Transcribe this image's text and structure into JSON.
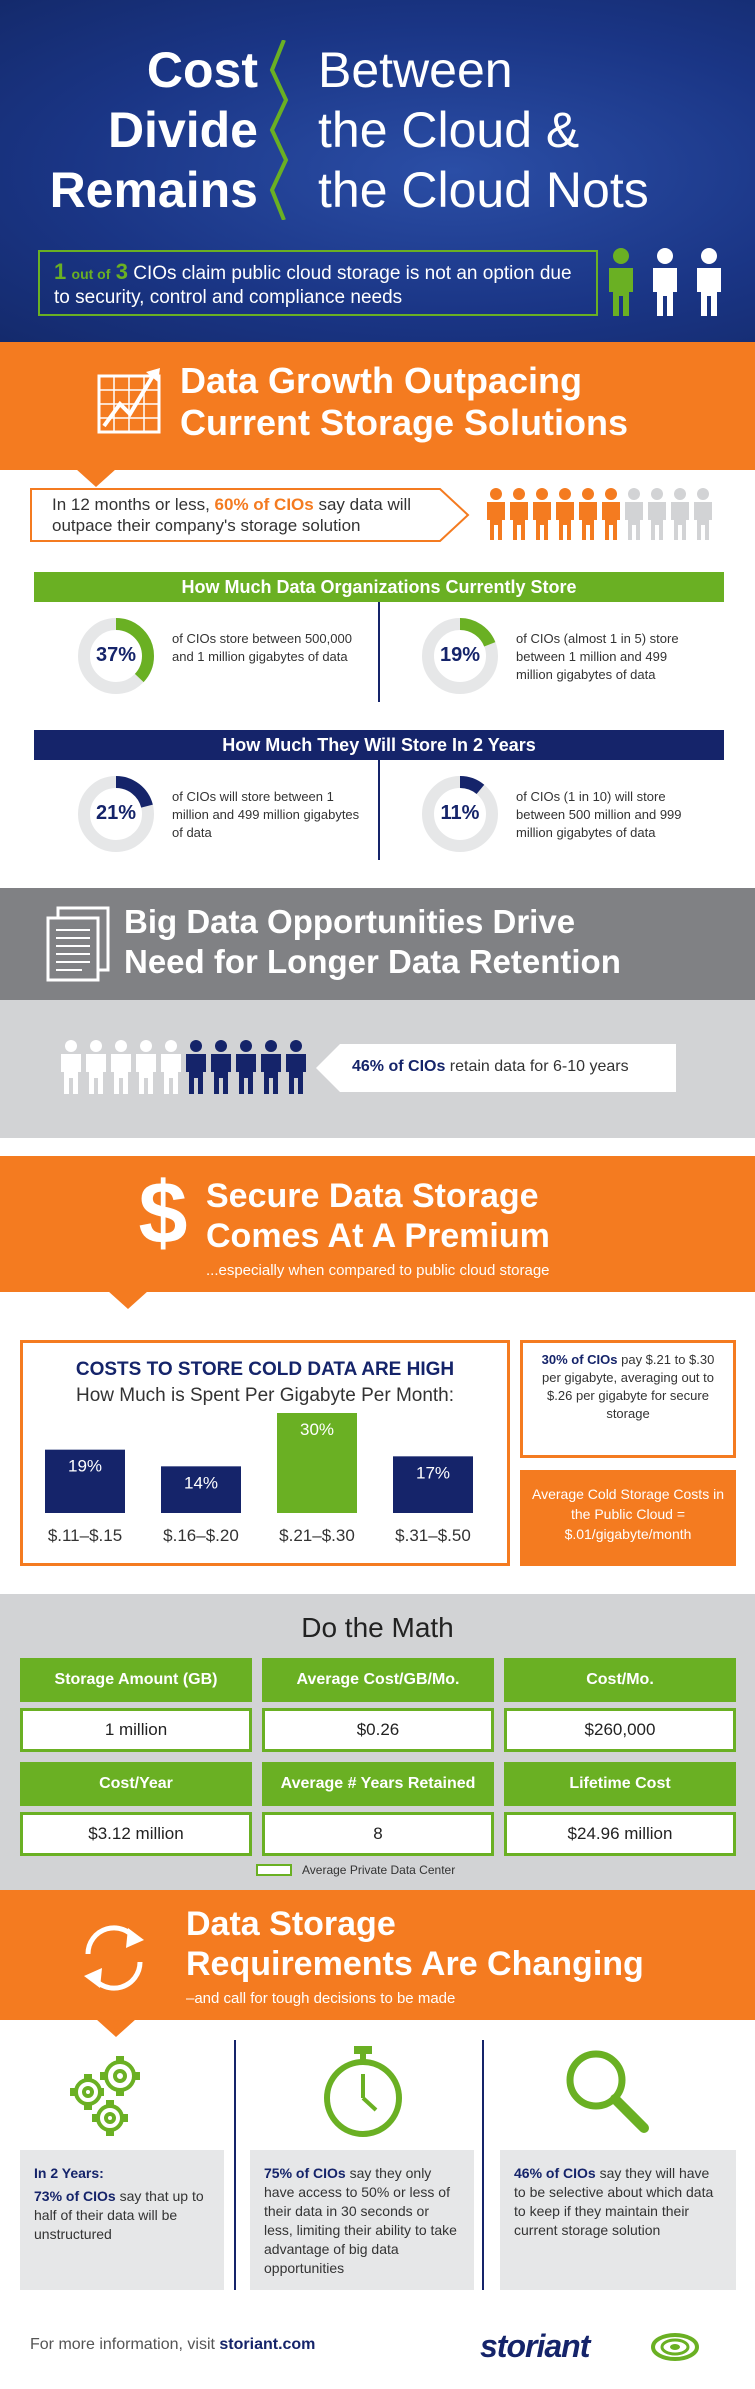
{
  "colors": {
    "navy": "#15246a",
    "blue": "#213d8f",
    "orange": "#f47b20",
    "green": "#6ab023",
    "gray": "#808184",
    "lightgray": "#d2d3d5",
    "white": "#ffffff"
  },
  "header": {
    "title_left": [
      "Cost",
      "Divide",
      "Remains"
    ],
    "title_right": [
      "Between",
      "the Cloud &",
      "the Cloud Nots"
    ],
    "stat_bold": "1",
    "stat_of": "out of",
    "stat_num": "3",
    "stat_text": "CIOs claim public cloud storage is not an option due to security, control and compliance needs",
    "person_icons": [
      "person-green",
      "person-white",
      "person-white"
    ]
  },
  "growth": {
    "title": [
      "Data Growth Outpacing",
      "Current Storage Solutions"
    ],
    "callout_pre": "In 12 months or less, ",
    "callout_bold": "60% of CIOs",
    "callout_post": " say data will outpace their company's storage solution",
    "people_orange": 6,
    "people_gray": 4
  },
  "current": {
    "heading": "How Much Data Organizations Currently Store",
    "items": [
      {
        "pct": "37%",
        "value": 37,
        "text": "of CIOs store between 500,000 and 1 million gigabytes of data"
      },
      {
        "pct": "19%",
        "value": 19,
        "text": "of CIOs (almost 1 in 5) store between 1 million and 499 million gigabytes of data"
      }
    ]
  },
  "future": {
    "heading": "How Much They Will Store In 2 Years",
    "items": [
      {
        "pct": "21%",
        "value": 21,
        "text": "of CIOs will store between 1 million and 499 million gigabytes of data"
      },
      {
        "pct": "11%",
        "value": 11,
        "text": "of CIOs (1 in 10) will store between 500 million and 999 million gigabytes of data"
      }
    ]
  },
  "bigdata": {
    "title": [
      "Big Data Opportunities Drive",
      "Need for Longer Data Retention"
    ],
    "stat_bold": "46% of CIOs",
    "stat_text": " retain data for 6-10 years",
    "people_white": 5,
    "people_navy": 5
  },
  "secure": {
    "title": [
      "Secure Data Storage",
      "Comes At A Premium"
    ],
    "subtitle": "...especially when compared to public cloud storage"
  },
  "costs": {
    "title": "COSTS TO STORE COLD DATA ARE HIGH",
    "subtitle": "How Much is Spent Per Gigabyte Per Month:",
    "side_bold": "30% of CIOs",
    "side_text": " pay $.21 to $.30 per gigabyte, averaging out to $.26 per gigabyte for secure storage",
    "public_note": "Average Cold Storage Costs in the Public Cloud = $.01/gigabyte/month"
  },
  "chart_data": {
    "type": "bar",
    "categories": [
      "$.11–$.15",
      "$.16–$.20",
      "$.21–$.30",
      "$.31–$.50"
    ],
    "values": [
      19,
      14,
      30,
      17
    ],
    "labels": [
      "19%",
      "14%",
      "30%",
      "17%"
    ],
    "highlight_index": 2,
    "ylim": [
      0,
      30
    ]
  },
  "math": {
    "title": "Do the Math",
    "headers1": [
      "Storage Amount (GB)",
      "Average Cost/GB/Mo.",
      "Cost/Mo."
    ],
    "values1": [
      "1 million",
      "$0.26",
      "$260,000"
    ],
    "headers2": [
      "Cost/Year",
      "Average # Years Retained",
      "Lifetime Cost"
    ],
    "values2": [
      "$3.12 million",
      "8",
      "$24.96 million"
    ],
    "legend": "Average Private Data Center"
  },
  "changing": {
    "title": [
      "Data Storage",
      "Requirements Are Changing"
    ],
    "subtitle": "–and call for tough decisions to be made",
    "cols": [
      {
        "icon": "gears-icon",
        "lead": "In 2 Years:",
        "bold": "73% of CIOs",
        "text": " say that up to half of their data will be unstructured"
      },
      {
        "icon": "stopwatch-icon",
        "lead": "",
        "bold": "75% of CIOs",
        "text": " say they only have access to 50% or less of their data in 30 seconds or less, limiting their ability to take advantage of big data opportunities"
      },
      {
        "icon": "magnifier-icon",
        "lead": "",
        "bold": "46% of CIOs",
        "text": " say they will have to be selective about which data to keep if they maintain their current storage solution"
      }
    ]
  },
  "footer": {
    "text": "For more information, visit ",
    "link": "storiant.com",
    "logo": "storiant"
  }
}
